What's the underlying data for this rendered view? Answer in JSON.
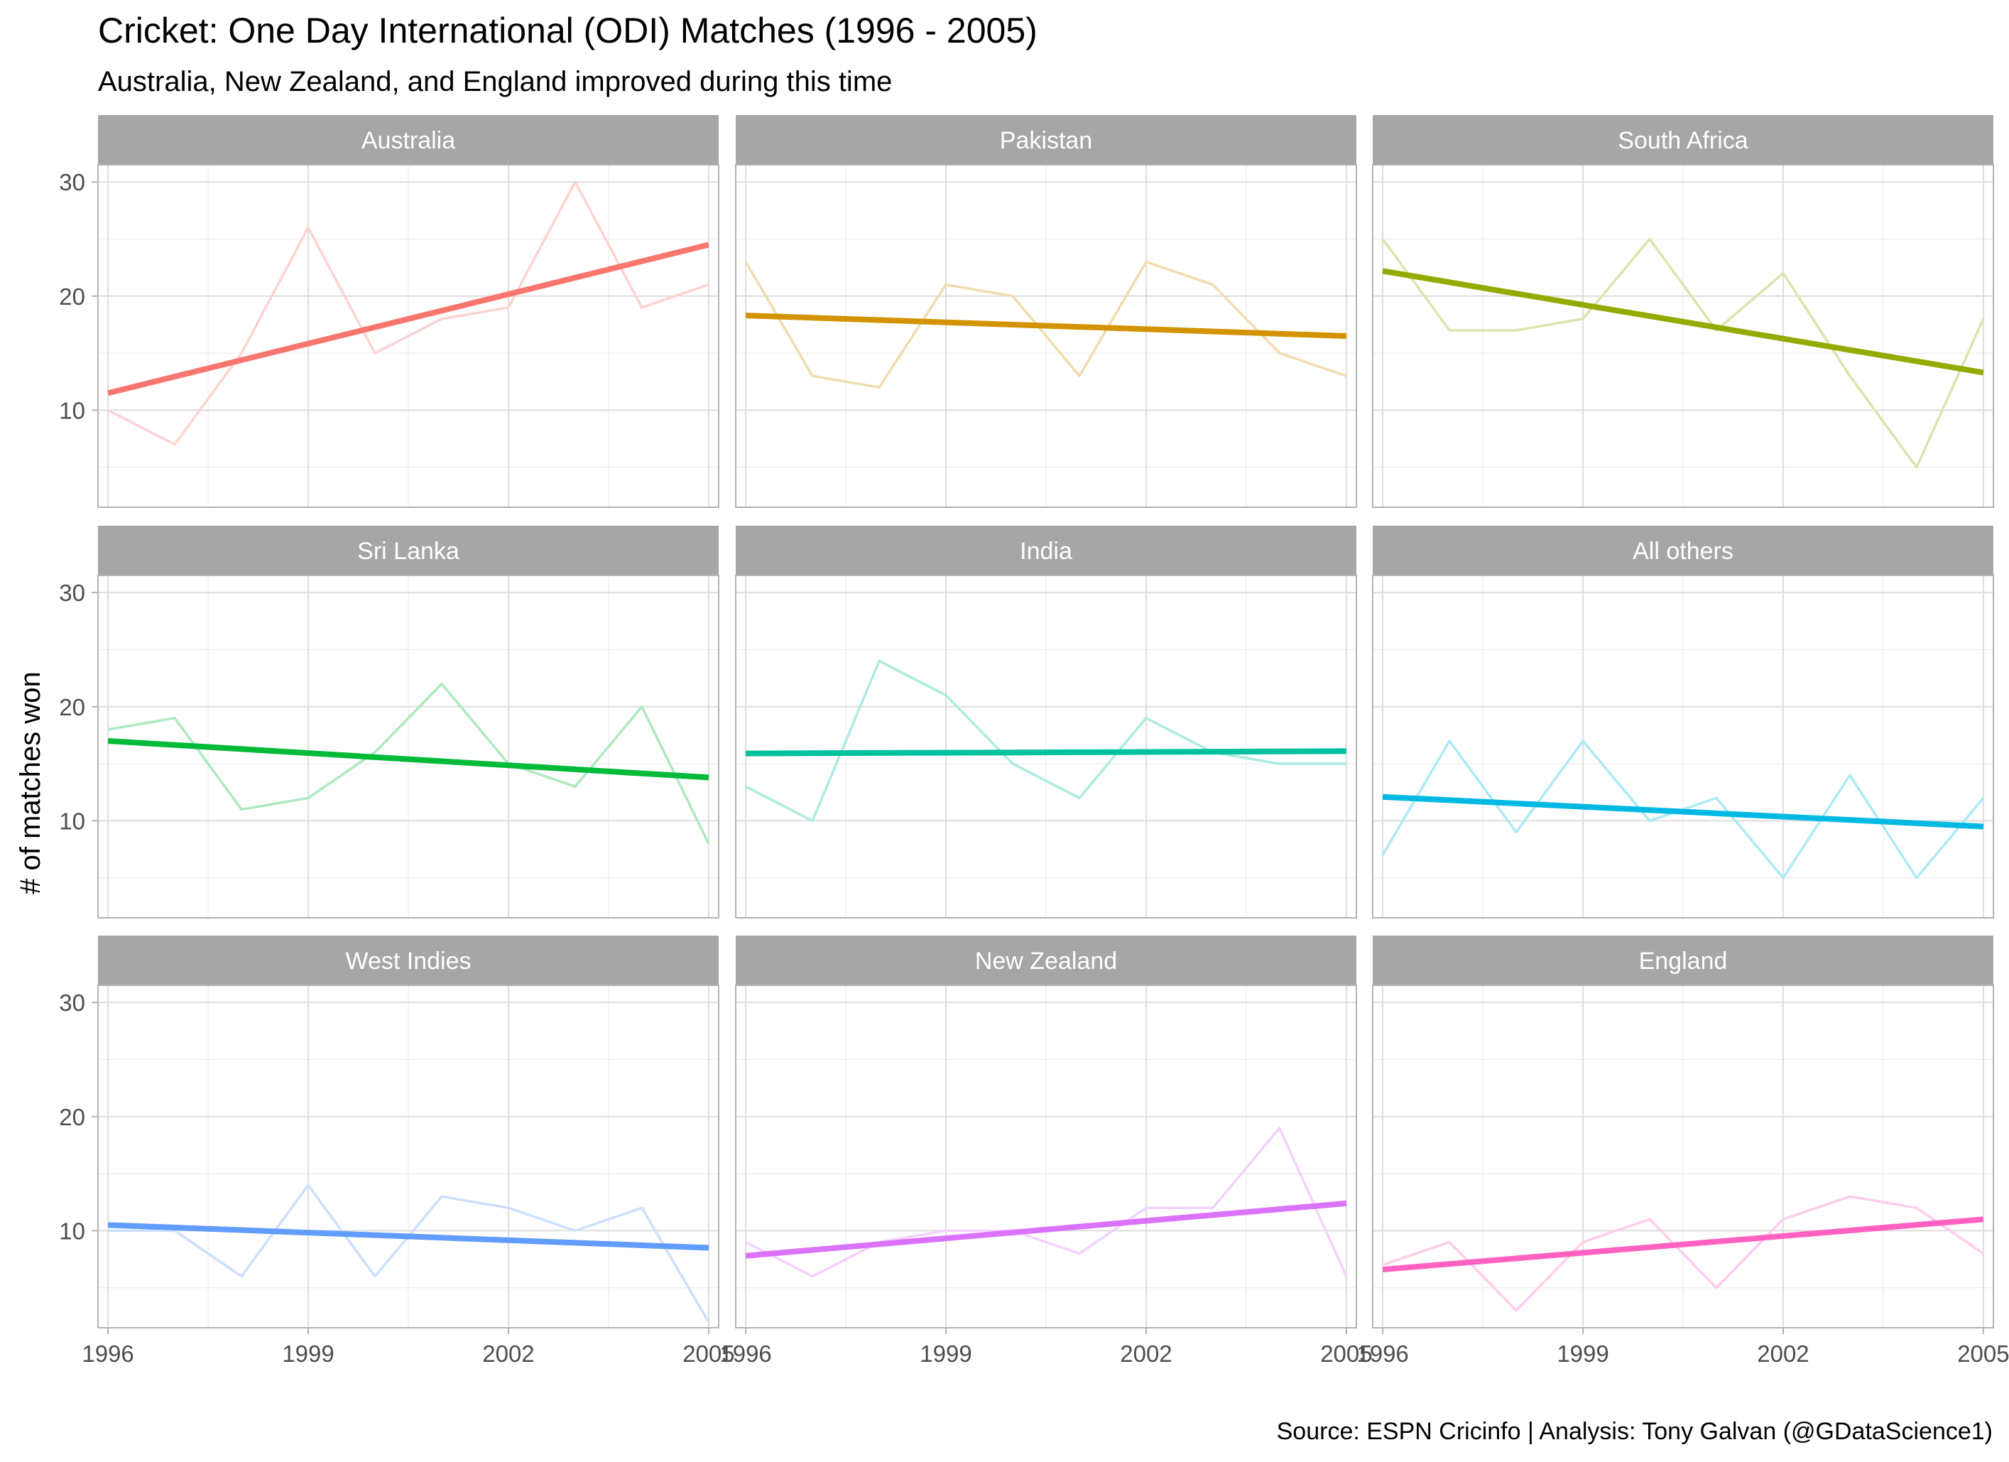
{
  "chart_data": {
    "type": "line",
    "title": "Cricket: One Day International (ODI) Matches (1996 - 2005)",
    "subtitle": "Australia, New Zealand, and England improved during this time",
    "ylabel": "# of matches won",
    "xlabel": "",
    "caption": "Source: ESPN Cricinfo  |  Analysis: Tony Galvan (@GDataScience1)",
    "xlim": [
      1995.85,
      2005.15
    ],
    "ylim": [
      1.5,
      31.5
    ],
    "x_ticks": [
      1996,
      1999,
      2002,
      2005
    ],
    "y_ticks": [
      10,
      20,
      30
    ],
    "grid": true,
    "legend": "none",
    "facet_layout": {
      "rows": 3,
      "cols": 3
    },
    "x": [
      1996,
      1997,
      1998,
      1999,
      2000,
      2001,
      2002,
      2003,
      2004,
      2005
    ],
    "series": [
      {
        "name": "Australia",
        "color": "#F8766D",
        "values": [
          10,
          7,
          15,
          26,
          15,
          18,
          19,
          30,
          19,
          21
        ],
        "trend": [
          11.5,
          24.5
        ]
      },
      {
        "name": "Pakistan",
        "color": "#D39200",
        "values": [
          23,
          13,
          12,
          21,
          20,
          13,
          23,
          21,
          15,
          13
        ],
        "trend": [
          18.3,
          16.5
        ]
      },
      {
        "name": "South Africa",
        "color": "#93AA00",
        "values": [
          25,
          17,
          17,
          18,
          25,
          17,
          22,
          13,
          5,
          18
        ],
        "trend": [
          22.2,
          13.3
        ]
      },
      {
        "name": "Sri Lanka",
        "color": "#00BA38",
        "values": [
          18,
          19,
          11,
          12,
          16,
          22,
          15,
          13,
          20,
          8
        ],
        "trend": [
          17.0,
          13.8
        ]
      },
      {
        "name": "India",
        "color": "#00C19F",
        "values": [
          13,
          10,
          24,
          21,
          15,
          12,
          19,
          16,
          15,
          15
        ],
        "trend": [
          15.9,
          16.1
        ]
      },
      {
        "name": "All others",
        "color": "#00B9E3",
        "values": [
          7,
          17,
          9,
          17,
          10,
          12,
          5,
          14,
          5,
          12
        ],
        "trend": [
          12.1,
          9.5
        ]
      },
      {
        "name": "West Indies",
        "color": "#619CFF",
        "values": [
          10,
          10,
          6,
          14,
          6,
          13,
          12,
          10,
          12,
          2
        ],
        "trend": [
          10.5,
          8.5
        ]
      },
      {
        "name": "New Zealand",
        "color": "#DB72FB",
        "values": [
          9,
          6,
          9,
          10,
          10,
          8,
          12,
          12,
          19,
          6
        ],
        "trend": [
          7.8,
          12.4
        ]
      },
      {
        "name": "England",
        "color": "#FF61C3",
        "values": [
          7,
          9,
          3,
          9,
          11,
          5,
          11,
          13,
          12,
          8
        ],
        "trend": [
          6.6,
          11.0
        ]
      }
    ]
  }
}
